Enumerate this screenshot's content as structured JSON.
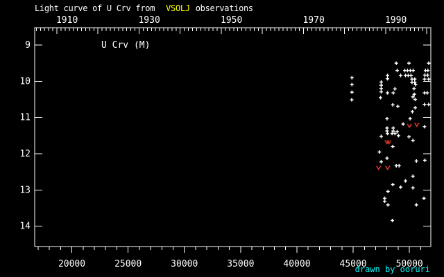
{
  "title": {
    "prefix": "Light curve of U Crv from",
    "source": "VSOLJ",
    "suffix": "observations"
  },
  "star_label": "U Crv (M)",
  "credit": "drawn by ooruri",
  "colors": {
    "background": "#000000",
    "foreground": "#ffffff",
    "title_source": "#ffff00",
    "credit": "#00ffff",
    "limit_marker": "#e8392a"
  },
  "chart_data": {
    "type": "scatter",
    "title": "Light curve of U Crv from VSOLJ observations",
    "x_range_jd": [
      16700,
      51900
    ],
    "mag_range": [
      8.52,
      14.56
    ],
    "grid": false,
    "axes": {
      "bottom_major_ticks": [
        20000,
        25000,
        30000,
        35000,
        40000,
        45000,
        50000
      ],
      "bottom_minor_step": 1000,
      "top_year_major_ticks": [
        1910,
        1920,
        1930,
        1940,
        1950,
        1960,
        1970,
        1980,
        1990,
        2000
      ],
      "top_year_labels": [
        1910,
        1930,
        1950,
        1970,
        1990
      ],
      "top_minor_step_years": 1,
      "mag_ticks": [
        9,
        10,
        11,
        12,
        13,
        14
      ]
    },
    "series": [
      {
        "name": "observations",
        "marker": "plus",
        "color": "#ffffff",
        "points": [
          [
            48830,
            9.5
          ],
          [
            49960,
            9.5
          ],
          [
            51710,
            9.5
          ],
          [
            48910,
            9.7
          ],
          [
            49590,
            9.7
          ],
          [
            49830,
            9.7
          ],
          [
            50080,
            9.7
          ],
          [
            50330,
            9.7
          ],
          [
            51430,
            9.7
          ],
          [
            51640,
            9.7
          ],
          [
            48050,
            9.84
          ],
          [
            49220,
            9.84
          ],
          [
            49650,
            9.84
          ],
          [
            49890,
            9.84
          ],
          [
            50140,
            9.84
          ],
          [
            51370,
            9.83
          ],
          [
            51620,
            9.83
          ],
          [
            44890,
            9.9
          ],
          [
            48050,
            9.93
          ],
          [
            50230,
            9.94
          ],
          [
            50470,
            9.94
          ],
          [
            51340,
            9.94
          ],
          [
            51710,
            9.94
          ],
          [
            47490,
            10.02
          ],
          [
            50230,
            10.03
          ],
          [
            50470,
            10.03
          ],
          [
            44890,
            10.09
          ],
          [
            47490,
            10.11
          ],
          [
            50550,
            10.09
          ],
          [
            50410,
            10.2
          ],
          [
            47490,
            10.2
          ],
          [
            48710,
            10.21
          ],
          [
            44890,
            10.3
          ],
          [
            47490,
            10.29
          ],
          [
            48050,
            10.32
          ],
          [
            48560,
            10.32
          ],
          [
            50430,
            10.36
          ],
          [
            51340,
            10.32
          ],
          [
            51580,
            10.32
          ],
          [
            44870,
            10.51
          ],
          [
            47430,
            10.45
          ],
          [
            50310,
            10.43
          ],
          [
            50510,
            10.5
          ],
          [
            48520,
            10.65
          ],
          [
            48970,
            10.69
          ],
          [
            50510,
            10.73
          ],
          [
            51340,
            10.64
          ],
          [
            51710,
            10.64
          ],
          [
            50260,
            10.84
          ],
          [
            48010,
            11.03
          ],
          [
            50060,
            11.03
          ],
          [
            49440,
            11.18
          ],
          [
            51340,
            11.25
          ],
          [
            48010,
            11.29
          ],
          [
            48560,
            11.29
          ],
          [
            48010,
            11.37
          ],
          [
            48560,
            11.37
          ],
          [
            48910,
            11.39
          ],
          [
            47490,
            11.52
          ],
          [
            48050,
            11.44
          ],
          [
            48460,
            11.44
          ],
          [
            48710,
            11.44
          ],
          [
            49030,
            11.5
          ],
          [
            49960,
            11.53
          ],
          [
            50310,
            11.63
          ],
          [
            48520,
            11.8
          ],
          [
            47330,
            11.95
          ],
          [
            48010,
            12.12
          ],
          [
            47490,
            12.22
          ],
          [
            50620,
            12.2
          ],
          [
            51370,
            12.18
          ],
          [
            48830,
            12.33
          ],
          [
            49080,
            12.33
          ],
          [
            50310,
            12.62
          ],
          [
            49650,
            12.75
          ],
          [
            48520,
            12.85
          ],
          [
            49220,
            12.92
          ],
          [
            50310,
            12.94
          ],
          [
            48090,
            13.04
          ],
          [
            47800,
            13.23
          ],
          [
            47800,
            13.31
          ],
          [
            51290,
            13.23
          ],
          [
            48090,
            13.41
          ],
          [
            50620,
            13.41
          ],
          [
            48480,
            13.84
          ]
        ]
      },
      {
        "name": "fainter-than-limits",
        "marker": "v",
        "color": "#e8392a",
        "points": [
          [
            50000,
            11.22
          ],
          [
            50650,
            11.19
          ],
          [
            48000,
            11.67
          ],
          [
            48180,
            11.67
          ],
          [
            47260,
            12.38
          ],
          [
            48060,
            12.38
          ]
        ]
      }
    ]
  }
}
